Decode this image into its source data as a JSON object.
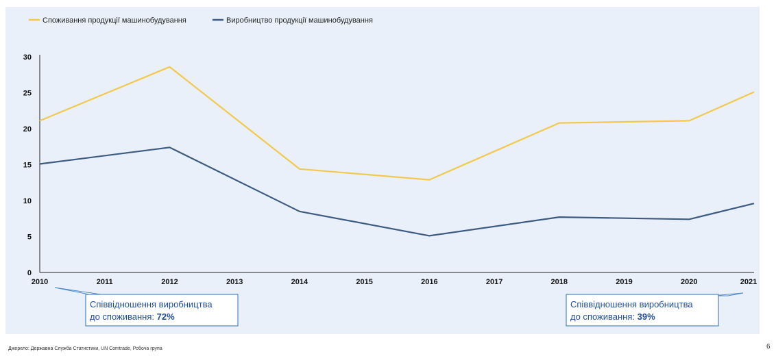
{
  "chart_data": {
    "type": "line",
    "x": [
      "2010",
      "2011",
      "2012",
      "2013",
      "2014",
      "2015",
      "2016",
      "2017",
      "2018",
      "2019",
      "2020",
      "2021"
    ],
    "yticks": [
      "0",
      "5",
      "10",
      "15",
      "20",
      "25",
      "30"
    ],
    "ylim": [
      0,
      30
    ],
    "grid": false,
    "legend_position": "top-left",
    "series": [
      {
        "name": "Споживання продукції машинобудування",
        "color": "#f2c94c",
        "points": [
          [
            2010,
            21.1
          ],
          [
            2012,
            28.6
          ],
          [
            2014,
            14.4
          ],
          [
            2016,
            12.9
          ],
          [
            2018,
            20.8
          ],
          [
            2020,
            21.1
          ],
          [
            2021,
            25.1
          ]
        ]
      },
      {
        "name": "Виробництво продукції машинобудування",
        "color": "#3d5a80",
        "points": [
          [
            2010,
            15.1
          ],
          [
            2012,
            17.4
          ],
          [
            2014,
            8.5
          ],
          [
            2016,
            5.1
          ],
          [
            2018,
            7.7
          ],
          [
            2020,
            7.4
          ],
          [
            2021,
            9.6
          ]
        ]
      }
    ],
    "annotations": [
      {
        "name": "callout-2010",
        "line1": "Співвідношення виробництва",
        "line2_prefix": "до споживання: ",
        "value": "72%"
      },
      {
        "name": "callout-2021",
        "line1": "Співвідношення виробництва",
        "line2_prefix": "до споживання: ",
        "value": "39%"
      }
    ]
  },
  "colors": {
    "plot_background": "#e9f0fa",
    "axis": "#222222",
    "callout_border": "#4a86c8",
    "callout_text": "#1f4e9c"
  },
  "footer": {
    "source": "Джерело: Державна Служба Статистики, UN Comtrade, Робоча група",
    "page_number": "6"
  }
}
